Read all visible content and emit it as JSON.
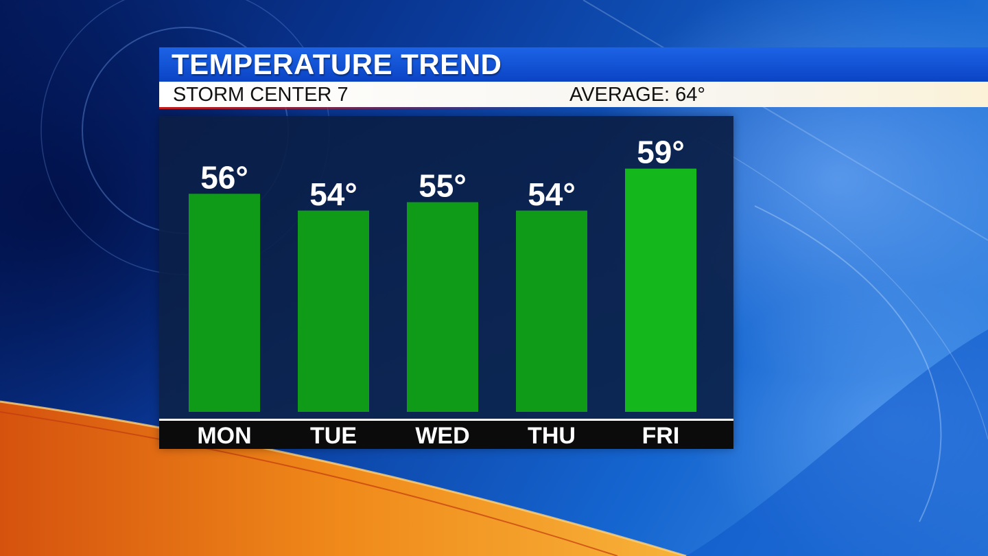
{
  "header": {
    "title": "TEMPERATURE TREND",
    "station": "STORM CENTER 7",
    "average_label": "AVERAGE: 64°"
  },
  "colors": {
    "bar": "#0f9a18",
    "bar_highlight": "#14b81c",
    "title_bar": "#0a44c4",
    "label_strip": "#0b0b0b"
  },
  "chart_data": {
    "type": "bar",
    "categories": [
      "MON",
      "TUE",
      "WED",
      "THU",
      "FRI"
    ],
    "values": [
      56,
      54,
      55,
      54,
      59
    ],
    "value_labels": [
      "56°",
      "54°",
      "55°",
      "54°",
      "59°"
    ],
    "unit": "°",
    "ylim": [
      30,
      62
    ],
    "grid": false,
    "legend": "none"
  }
}
